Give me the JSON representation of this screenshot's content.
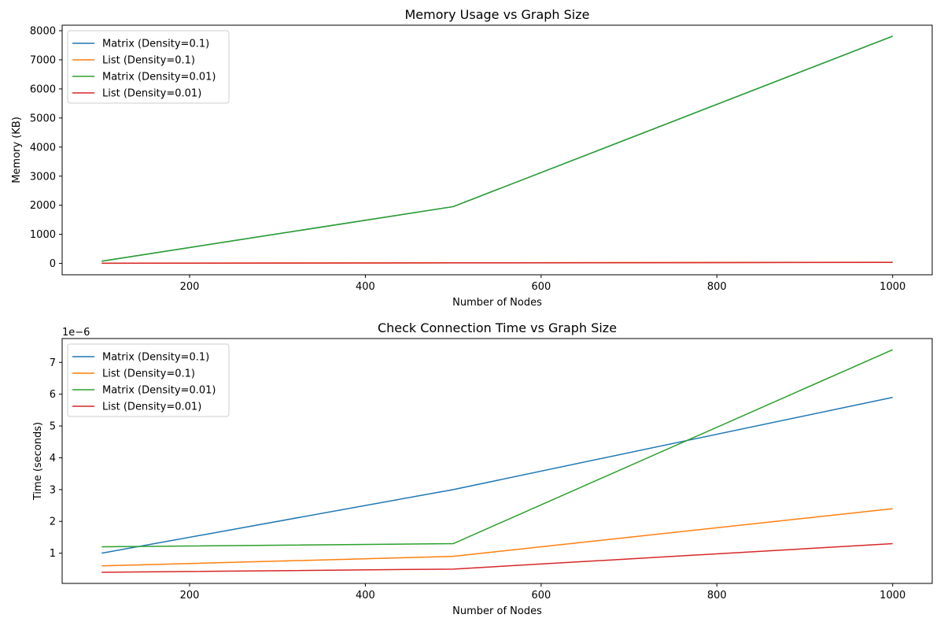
{
  "chart_data": [
    {
      "type": "line",
      "title": "Memory Usage vs Graph Size",
      "xlabel": "Number of Nodes",
      "ylabel": "Memory (KB)",
      "xlim": [
        55,
        1045
      ],
      "ylim": [
        -390,
        8190
      ],
      "xticks": [
        200,
        400,
        600,
        800,
        1000
      ],
      "yticks": [
        0,
        1000,
        2000,
        3000,
        4000,
        5000,
        6000,
        7000,
        8000
      ],
      "x": [
        100,
        500,
        1000
      ],
      "legend_position": "upper-left",
      "grid": false,
      "series": [
        {
          "name": "Matrix (Density=0.1)",
          "color": "#1f77b4",
          "values": [
            78,
            1953,
            7812
          ]
        },
        {
          "name": "List (Density=0.1)",
          "color": "#ff7f0e",
          "values": [
            8,
            22,
            40
          ]
        },
        {
          "name": "Matrix (Density=0.01)",
          "color": "#2ca02c",
          "values": [
            78,
            1953,
            7812
          ]
        },
        {
          "name": "List (Density=0.01)",
          "color": "#d62728",
          "values": [
            5,
            18,
            35
          ]
        }
      ]
    },
    {
      "type": "line",
      "title": "Check Connection Time vs Graph Size",
      "xlabel": "Number of Nodes",
      "ylabel": "Time (seconds)",
      "offset_text": "1e−6",
      "xlim": [
        55,
        1045
      ],
      "ylim": [
        0.05,
        7.75
      ],
      "xticks": [
        200,
        400,
        600,
        800,
        1000
      ],
      "yticks": [
        1,
        2,
        3,
        4,
        5,
        6,
        7
      ],
      "x": [
        100,
        500,
        1000
      ],
      "legend_position": "upper-left",
      "grid": false,
      "series": [
        {
          "name": "Matrix (Density=0.1)",
          "color": "#1f77b4",
          "values": [
            1.0,
            3.0,
            5.9
          ]
        },
        {
          "name": "List (Density=0.1)",
          "color": "#ff7f0e",
          "values": [
            0.6,
            0.9,
            2.4
          ]
        },
        {
          "name": "Matrix (Density=0.01)",
          "color": "#2ca02c",
          "values": [
            1.2,
            1.3,
            7.4
          ]
        },
        {
          "name": "List (Density=0.01)",
          "color": "#d62728",
          "values": [
            0.4,
            0.5,
            1.3
          ]
        }
      ]
    }
  ]
}
